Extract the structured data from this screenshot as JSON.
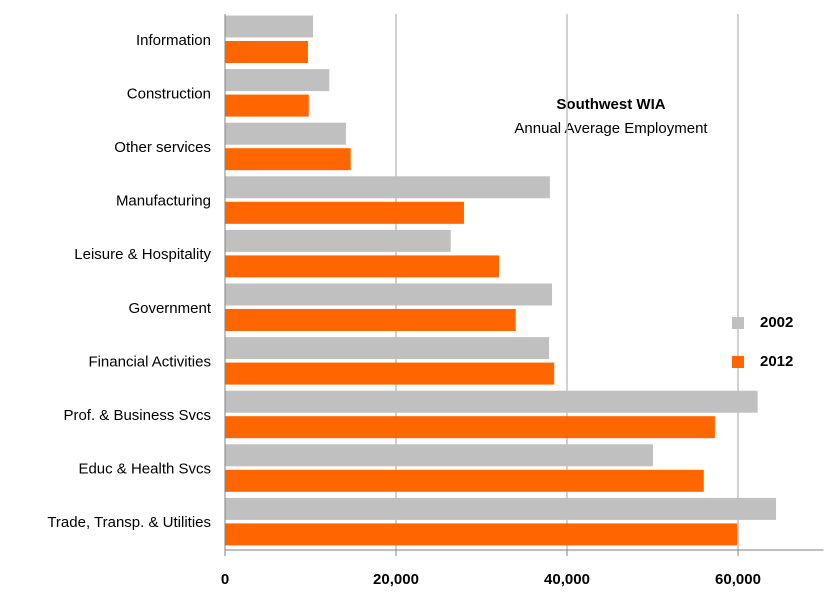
{
  "chart_data": {
    "type": "hbar",
    "annotation_title": "Southwest WIA",
    "annotation_subtitle": "Annual Average Employment",
    "categories": [
      "Information",
      "Construction",
      "Other services",
      "Manufacturing",
      "Leisure & Hospitality",
      "Government",
      "Financial Activities",
      "Prof. & Business Svcs",
      "Educ & Health Svcs",
      "Trade, Transp. & Utilities"
    ],
    "series": [
      {
        "name": "2002",
        "color": "#c0c0c0",
        "values": [
          10300,
          12200,
          14150,
          38000,
          26400,
          38250,
          37900,
          62300,
          50050,
          64450
        ]
      },
      {
        "name": "2012",
        "color": "#ff6600",
        "values": [
          9700,
          9800,
          14700,
          27950,
          32050,
          34000,
          38500,
          57300,
          56000,
          59900
        ]
      }
    ],
    "xlim": [
      0,
      70000
    ],
    "xticks": [
      0,
      {
        "value": 20000,
        "label": "20,000"
      },
      {
        "value": 40000,
        "label": "40,000"
      },
      {
        "value": 60000,
        "label": "60,000"
      }
    ],
    "grid": true,
    "legend": "right"
  }
}
